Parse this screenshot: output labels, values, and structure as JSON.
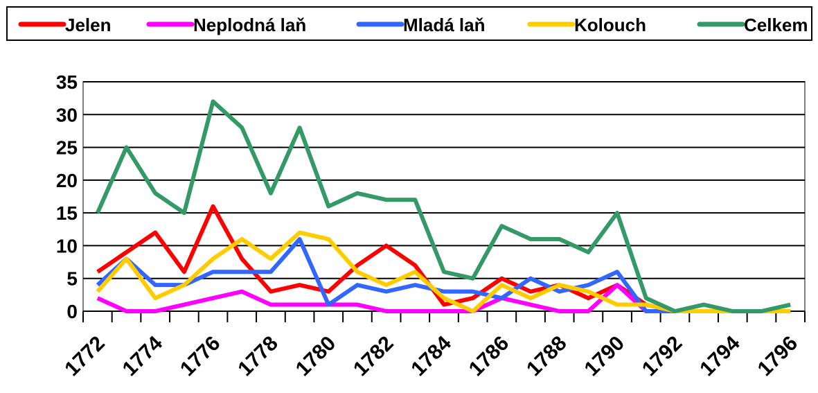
{
  "chart_data": {
    "type": "line",
    "categories": [
      "1772",
      null,
      "1774",
      null,
      "1776",
      null,
      "1778",
      null,
      "1780",
      null,
      "1782",
      null,
      "1784",
      null,
      "1786",
      null,
      "1788",
      null,
      "1790",
      null,
      "1792",
      null,
      "1794",
      null,
      "1796"
    ],
    "series": [
      {
        "name": "Jelen",
        "color": "#ff0000",
        "values": [
          6,
          9,
          12,
          6,
          16,
          8,
          3,
          4,
          3,
          7,
          10,
          7,
          1,
          2,
          5,
          3,
          4,
          2,
          4,
          1,
          0,
          0,
          0,
          0,
          0
        ]
      },
      {
        "name": "Neplodná laň",
        "color": "#ff00ff",
        "values": [
          2,
          0,
          0,
          1,
          2,
          3,
          1,
          1,
          1,
          1,
          0,
          0,
          0,
          0,
          2,
          1,
          0,
          0,
          4,
          0,
          0,
          0,
          0,
          0,
          0
        ]
      },
      {
        "name": "Mladá laň",
        "color": "#3366ff",
        "values": [
          4,
          8,
          4,
          4,
          6,
          6,
          6,
          11,
          1,
          4,
          3,
          4,
          3,
          3,
          2,
          5,
          3,
          4,
          6,
          0,
          0,
          0,
          0,
          0,
          0
        ]
      },
      {
        "name": "Kolouch",
        "color": "#ffcc00",
        "values": [
          3,
          8,
          2,
          4,
          8,
          11,
          8,
          12,
          11,
          6,
          4,
          6,
          2,
          0,
          4,
          2,
          4,
          3,
          1,
          1,
          0,
          0,
          0,
          0,
          0
        ]
      },
      {
        "name": "Celkem",
        "color": "#339966",
        "values": [
          15,
          25,
          18,
          15,
          32,
          28,
          18,
          28,
          16,
          18,
          17,
          17,
          6,
          5,
          13,
          11,
          11,
          9,
          15,
          2,
          0,
          1,
          0,
          0,
          1
        ]
      }
    ],
    "ylim": [
      0,
      35
    ],
    "yticks": [
      0,
      5,
      10,
      15,
      20,
      25,
      30,
      35
    ],
    "grid": true,
    "legend": "top"
  }
}
